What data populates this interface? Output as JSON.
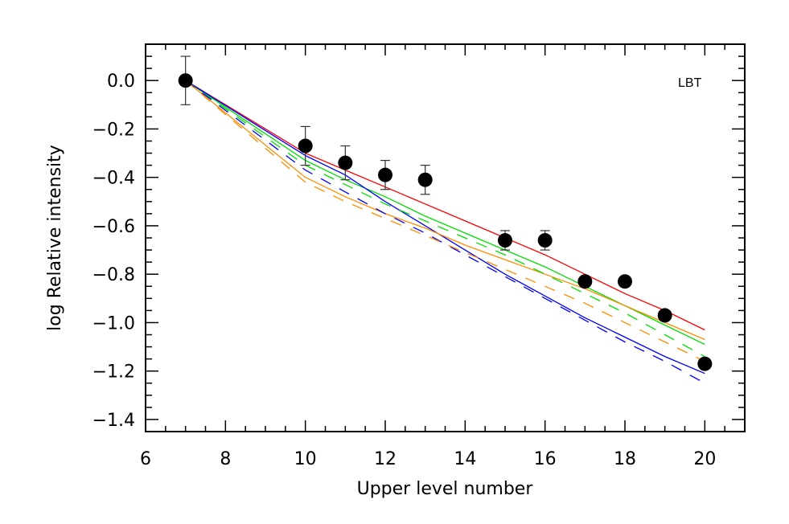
{
  "chart_data": {
    "type": "line",
    "title": "",
    "annotation": "LBT",
    "xlabel": "Upper level number",
    "ylabel": "log Relative intensity",
    "xlim": [
      6,
      21
    ],
    "ylim": [
      -1.45,
      0.15
    ],
    "xticks": [
      6,
      8,
      10,
      12,
      14,
      16,
      18,
      20
    ],
    "xtick_labels": [
      "6",
      "8",
      "10",
      "12",
      "14",
      "16",
      "18",
      "20"
    ],
    "yticks": [
      0.0,
      -0.2,
      -0.4,
      -0.6,
      -0.8,
      -1.0,
      -1.2,
      -1.4
    ],
    "ytick_labels": [
      "0.0",
      "−0.2",
      "−0.4",
      "−0.6",
      "−0.8",
      "−1.0",
      "−1.2",
      "−1.4"
    ],
    "grid": false,
    "legend": null,
    "observed": {
      "name": "Observed (LBT)",
      "marker": "filled-circle",
      "color": "#000000",
      "x": [
        7,
        10,
        11,
        12,
        13,
        15,
        16,
        17,
        18,
        19,
        20
      ],
      "y": [
        0.0,
        -0.27,
        -0.34,
        -0.39,
        -0.41,
        -0.66,
        -0.66,
        -0.83,
        -0.83,
        -0.97,
        -1.17
      ],
      "yerr": [
        0.1,
        0.08,
        0.07,
        0.06,
        0.06,
        0.04,
        0.04,
        null,
        null,
        null,
        null
      ]
    },
    "series": [
      {
        "name": "model-red-solid",
        "color": "#ff0000",
        "style": "solid",
        "x": [
          7,
          10,
          11,
          12,
          13,
          14,
          15,
          16,
          17,
          18,
          19,
          20
        ],
        "y": [
          0.0,
          -0.3,
          -0.37,
          -0.44,
          -0.51,
          -0.58,
          -0.65,
          -0.72,
          -0.8,
          -0.88,
          -0.95,
          -1.03
        ]
      },
      {
        "name": "model-green-solid",
        "color": "#00dd00",
        "style": "solid",
        "x": [
          7,
          10,
          11,
          12,
          13,
          14,
          15,
          16,
          17,
          18,
          19,
          20
        ],
        "y": [
          0.0,
          -0.33,
          -0.41,
          -0.48,
          -0.56,
          -0.63,
          -0.7,
          -0.77,
          -0.85,
          -0.93,
          -1.01,
          -1.09
        ]
      },
      {
        "name": "model-blue-solid",
        "color": "#0000ff",
        "style": "solid",
        "x": [
          7,
          10,
          11,
          12,
          13,
          14,
          15,
          16,
          17,
          18,
          19,
          20
        ],
        "y": [
          0.0,
          -0.31,
          -0.39,
          -0.5,
          -0.6,
          -0.7,
          -0.8,
          -0.89,
          -0.98,
          -1.06,
          -1.14,
          -1.21
        ]
      },
      {
        "name": "model-orange-solid",
        "color": "#ff8c00",
        "style": "solid",
        "x": [
          7,
          10,
          11,
          12,
          13,
          14,
          15,
          16,
          17,
          18,
          19,
          20
        ],
        "y": [
          0.0,
          -0.4,
          -0.48,
          -0.55,
          -0.61,
          -0.68,
          -0.74,
          -0.8,
          -0.86,
          -0.93,
          -1.0,
          -1.07
        ]
      },
      {
        "name": "model-green-dashed",
        "color": "#00dd00",
        "style": "dashed",
        "x": [
          7,
          10,
          11,
          12,
          13,
          14,
          15,
          16,
          17,
          18,
          19,
          20
        ],
        "y": [
          0.0,
          -0.35,
          -0.43,
          -0.51,
          -0.58,
          -0.65,
          -0.72,
          -0.8,
          -0.88,
          -0.96,
          -1.05,
          -1.14
        ]
      },
      {
        "name": "model-blue-dashed",
        "color": "#0000ff",
        "style": "dashed",
        "x": [
          7,
          10,
          11,
          12,
          13,
          14,
          15,
          16,
          17,
          18,
          19,
          20
        ],
        "y": [
          0.0,
          -0.37,
          -0.46,
          -0.55,
          -0.63,
          -0.72,
          -0.81,
          -0.9,
          -0.99,
          -1.08,
          -1.16,
          -1.25
        ]
      },
      {
        "name": "model-orange-dashed",
        "color": "#ff8c00",
        "style": "dashed",
        "x": [
          7,
          10,
          11,
          12,
          13,
          14,
          15,
          16,
          17,
          18,
          19,
          20
        ],
        "y": [
          0.0,
          -0.42,
          -0.5,
          -0.57,
          -0.64,
          -0.71,
          -0.78,
          -0.85,
          -0.92,
          -1.0,
          -1.08,
          -1.16
        ]
      }
    ]
  }
}
